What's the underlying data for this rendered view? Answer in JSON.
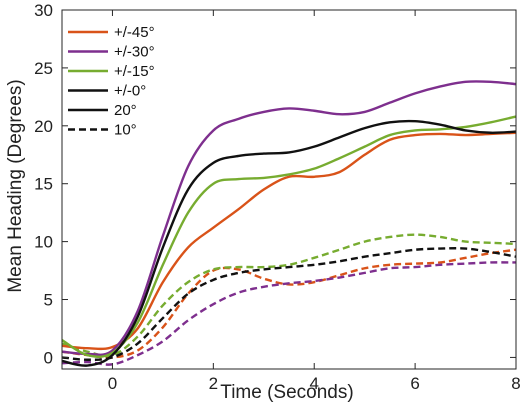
{
  "chart_data": {
    "type": "line",
    "title": "",
    "xlabel": "Time (Seconds)",
    "ylabel": "Mean Heading (Degrees)",
    "xlim": [
      -1,
      8
    ],
    "ylim": [
      -1,
      30
    ],
    "xticks": [
      0,
      2,
      4,
      6,
      8
    ],
    "yticks": [
      0,
      5,
      10,
      15,
      20,
      25,
      30
    ],
    "grid": false,
    "legend_position": "top-left",
    "legend": [
      {
        "label": "+/-45°",
        "color": "#D95319",
        "dash": "solid"
      },
      {
        "label": "+/-30°",
        "color": "#7E2F8E",
        "dash": "solid"
      },
      {
        "label": "+/-15°",
        "color": "#77AC30",
        "dash": "solid"
      },
      {
        "label": "+/-0°",
        "color": "#111111",
        "dash": "solid"
      },
      {
        "label": "20°",
        "color": "#111111",
        "dash": "solid"
      },
      {
        "label": "10°",
        "color": "#111111",
        "dash": "dashed"
      }
    ],
    "series": [
      {
        "name": "+/-45°",
        "group": "20°",
        "color": "#D95319",
        "dash": "solid",
        "x": [
          -1,
          -0.5,
          0,
          0.5,
          1,
          1.5,
          2,
          2.5,
          3,
          3.5,
          4,
          4.5,
          5,
          5.5,
          6,
          6.5,
          7,
          7.5,
          8
        ],
        "y": [
          1.0,
          0.8,
          0.9,
          2.5,
          6.5,
          9.5,
          11.2,
          12.8,
          14.5,
          15.6,
          15.6,
          16.0,
          17.5,
          18.8,
          19.2,
          19.3,
          19.2,
          19.3,
          19.4
        ]
      },
      {
        "name": "+/-30°",
        "group": "20°",
        "color": "#7E2F8E",
        "dash": "solid",
        "x": [
          -1,
          -0.5,
          0,
          0.5,
          1,
          1.5,
          2,
          2.5,
          3,
          3.5,
          4,
          4.5,
          5,
          5.5,
          6,
          6.5,
          7,
          7.5,
          8
        ],
        "y": [
          0.5,
          0.3,
          0.6,
          4.0,
          10.5,
          16.5,
          19.6,
          20.6,
          21.2,
          21.5,
          21.3,
          21.0,
          21.2,
          22.0,
          22.8,
          23.4,
          23.8,
          23.8,
          23.6
        ]
      },
      {
        "name": "+/-15°",
        "group": "20°",
        "color": "#77AC30",
        "dash": "solid",
        "x": [
          -1,
          -0.5,
          0,
          0.5,
          1,
          1.5,
          2,
          2.5,
          3,
          3.5,
          4,
          4.5,
          5,
          5.5,
          6,
          6.5,
          7,
          7.5,
          8
        ],
        "y": [
          1.5,
          0.2,
          0.4,
          3.0,
          8.0,
          12.5,
          15.0,
          15.4,
          15.5,
          15.8,
          16.3,
          17.2,
          18.2,
          19.2,
          19.6,
          19.7,
          19.9,
          20.3,
          20.8
        ]
      },
      {
        "name": "+/-0°",
        "group": "20°",
        "color": "#111111",
        "dash": "solid",
        "x": [
          -1,
          -0.5,
          0,
          0.5,
          1,
          1.5,
          2,
          2.5,
          3,
          3.5,
          4,
          4.5,
          5,
          5.5,
          6,
          6.5,
          7,
          7.5,
          8
        ],
        "y": [
          -0.3,
          -0.7,
          0.2,
          3.5,
          9.5,
          14.5,
          16.8,
          17.4,
          17.6,
          17.7,
          18.2,
          19.0,
          19.8,
          20.3,
          20.4,
          20.1,
          19.6,
          19.4,
          19.5
        ]
      },
      {
        "name": "+/-45°",
        "group": "10°",
        "color": "#D95319",
        "dash": "dashed",
        "x": [
          -1,
          -0.5,
          0,
          0.5,
          1,
          1.5,
          2,
          2.5,
          3,
          3.5,
          4,
          4.5,
          5,
          5.5,
          6,
          6.5,
          7,
          7.5,
          8
        ],
        "y": [
          0.5,
          0.2,
          0.0,
          0.6,
          2.6,
          5.5,
          7.5,
          7.6,
          6.8,
          6.3,
          6.5,
          7.1,
          7.7,
          8.0,
          8.1,
          8.2,
          8.6,
          9.0,
          9.3
        ]
      },
      {
        "name": "+/-30°",
        "group": "10°",
        "color": "#7E2F8E",
        "dash": "dashed",
        "x": [
          -1,
          -0.5,
          0,
          0.5,
          1,
          1.5,
          2,
          2.5,
          3,
          3.5,
          4,
          4.5,
          5,
          5.5,
          6,
          6.5,
          7,
          7.5,
          8
        ],
        "y": [
          -0.5,
          -0.4,
          -0.6,
          0.2,
          1.4,
          3.2,
          4.6,
          5.6,
          6.1,
          6.4,
          6.6,
          6.9,
          7.3,
          7.7,
          7.8,
          8.0,
          8.1,
          8.2,
          8.2
        ]
      },
      {
        "name": "+/-15°",
        "group": "10°",
        "color": "#77AC30",
        "dash": "dashed",
        "x": [
          -1,
          -0.5,
          0,
          0.5,
          1,
          1.5,
          2,
          2.5,
          3,
          3.5,
          4,
          4.5,
          5,
          5.5,
          6,
          6.5,
          7,
          7.5,
          8
        ],
        "y": [
          1.2,
          0.5,
          0.2,
          1.8,
          4.5,
          6.5,
          7.6,
          7.8,
          7.8,
          8.0,
          8.6,
          9.3,
          10.0,
          10.4,
          10.6,
          10.4,
          10.0,
          9.9,
          9.8
        ]
      },
      {
        "name": "+/-0°",
        "group": "10°",
        "color": "#111111",
        "dash": "dashed",
        "x": [
          -1,
          -0.5,
          0,
          0.5,
          1,
          1.5,
          2,
          2.5,
          3,
          3.5,
          4,
          4.5,
          5,
          5.5,
          6,
          6.5,
          7,
          7.5,
          8
        ],
        "y": [
          0.0,
          -0.2,
          0.0,
          1.2,
          3.4,
          5.5,
          6.7,
          7.3,
          7.6,
          7.8,
          8.0,
          8.3,
          8.7,
          9.0,
          9.3,
          9.4,
          9.4,
          9.1,
          8.7
        ]
      }
    ]
  }
}
